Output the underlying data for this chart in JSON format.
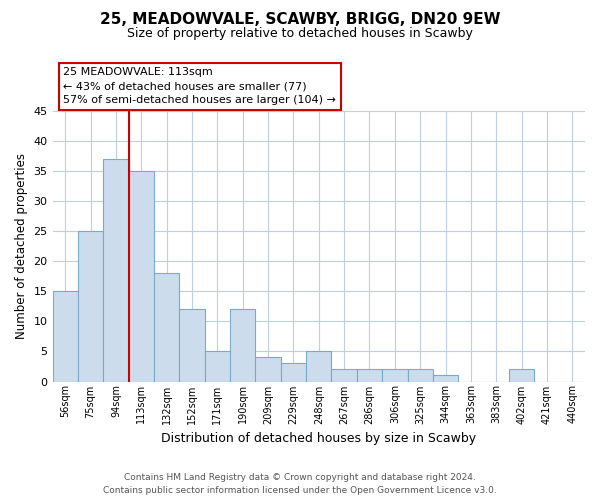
{
  "title": "25, MEADOWVALE, SCAWBY, BRIGG, DN20 9EW",
  "subtitle": "Size of property relative to detached houses in Scawby",
  "xlabel": "Distribution of detached houses by size in Scawby",
  "ylabel": "Number of detached properties",
  "bin_labels": [
    "56sqm",
    "75sqm",
    "94sqm",
    "113sqm",
    "132sqm",
    "152sqm",
    "171sqm",
    "190sqm",
    "209sqm",
    "229sqm",
    "248sqm",
    "267sqm",
    "286sqm",
    "306sqm",
    "325sqm",
    "344sqm",
    "363sqm",
    "383sqm",
    "402sqm",
    "421sqm",
    "440sqm"
  ],
  "bar_values": [
    15,
    25,
    37,
    35,
    18,
    12,
    5,
    12,
    4,
    3,
    5,
    2,
    2,
    2,
    2,
    1,
    0,
    0,
    2,
    0,
    0
  ],
  "bar_color": "#ccdcec",
  "bar_edge_color": "#7aaac8",
  "property_line_index": 3,
  "property_line_color": "#cc0000",
  "ylim": [
    0,
    45
  ],
  "yticks": [
    0,
    5,
    10,
    15,
    20,
    25,
    30,
    35,
    40,
    45
  ],
  "annotation_title": "25 MEADOWVALE: 113sqm",
  "annotation_line1": "← 43% of detached houses are smaller (77)",
  "annotation_line2": "57% of semi-detached houses are larger (104) →",
  "annotation_box_color": "#ffffff",
  "annotation_box_edge": "#cc0000",
  "footer1": "Contains HM Land Registry data © Crown copyright and database right 2024.",
  "footer2": "Contains public sector information licensed under the Open Government Licence v3.0.",
  "bg_color": "#ffffff",
  "grid_color": "#c0cfe0"
}
